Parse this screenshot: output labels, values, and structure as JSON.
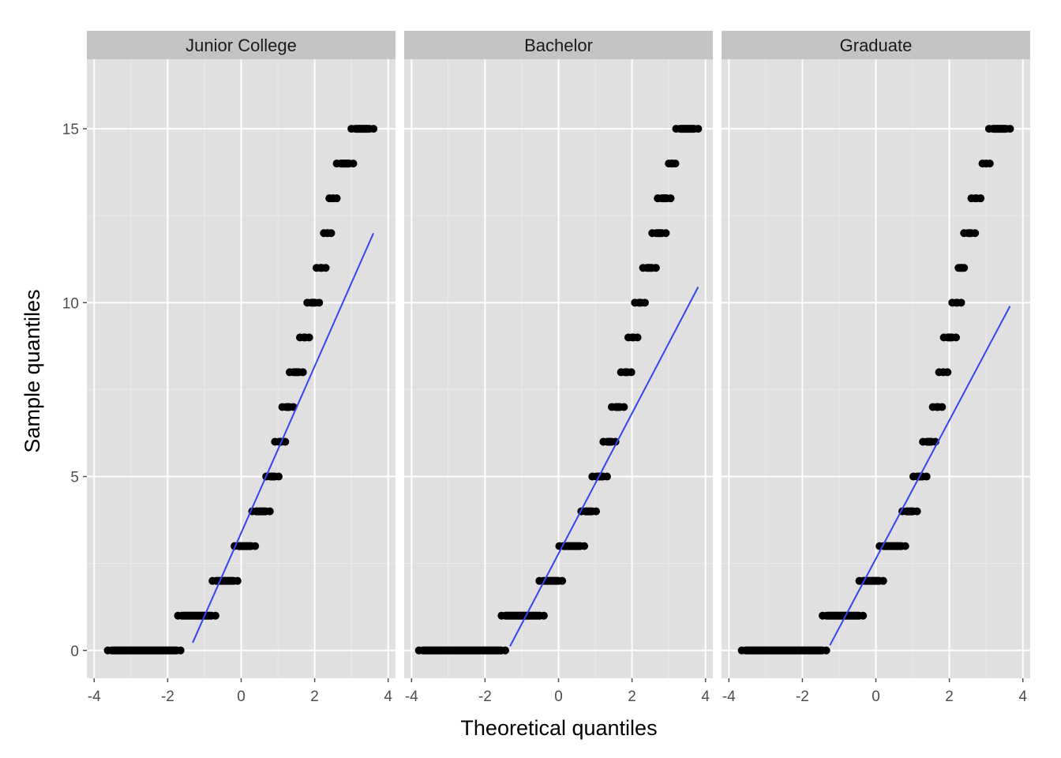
{
  "chart_data": {
    "type": "scatter",
    "subtype": "qq-plot-faceted",
    "title": "",
    "xlabel": "Theoretical quantiles",
    "ylabel": "Sample quantiles",
    "xlim": [
      -4.2,
      4.2
    ],
    "ylim": [
      -0.8,
      17.0
    ],
    "xticks": [
      -4,
      -2,
      0,
      2,
      4
    ],
    "yticks": [
      0,
      5,
      10,
      15
    ],
    "grid": true,
    "legend": "none",
    "colors": {
      "panel_background": "#e0e0e0",
      "strip_background": "#c4c4c4",
      "grid_major": "#ffffff",
      "grid_minor": "#ebebeb",
      "points": "#000000",
      "reference_line": "#3344ee"
    },
    "facets": [
      {
        "label": "Junior College",
        "reference_line": {
          "x": [
            -1.32,
            3.6
          ],
          "y": [
            0.22,
            12.0
          ]
        },
        "segments": [
          {
            "y": 0,
            "x_start": -3.63,
            "x_end": -1.65
          },
          {
            "y": 1,
            "x_start": -1.72,
            "x_end": -0.7
          },
          {
            "y": 2,
            "x_start": -0.78,
            "x_end": -0.1
          },
          {
            "y": 3,
            "x_start": -0.18,
            "x_end": 0.38
          },
          {
            "y": 4,
            "x_start": 0.3,
            "x_end": 0.78
          },
          {
            "y": 5,
            "x_start": 0.68,
            "x_end": 1.02
          },
          {
            "y": 6,
            "x_start": 0.92,
            "x_end": 1.2
          },
          {
            "y": 7,
            "x_start": 1.12,
            "x_end": 1.42
          },
          {
            "y": 8,
            "x_start": 1.32,
            "x_end": 1.68
          },
          {
            "y": 9,
            "x_start": 1.6,
            "x_end": 1.85
          },
          {
            "y": 10,
            "x_start": 1.8,
            "x_end": 2.12
          },
          {
            "y": 11,
            "x_start": 2.05,
            "x_end": 2.3
          },
          {
            "y": 12,
            "x_start": 2.25,
            "x_end": 2.45
          },
          {
            "y": 13,
            "x_start": 2.4,
            "x_end": 2.6
          },
          {
            "y": 14,
            "x_start": 2.6,
            "x_end": 3.05
          },
          {
            "y": 15,
            "x_start": 3.0,
            "x_end": 3.6
          }
        ]
      },
      {
        "label": "Bachelor",
        "reference_line": {
          "x": [
            -1.32,
            3.8
          ],
          "y": [
            0.12,
            10.45
          ]
        },
        "segments": [
          {
            "y": 0,
            "x_start": -3.8,
            "x_end": -1.45
          },
          {
            "y": 1,
            "x_start": -1.55,
            "x_end": -0.4
          },
          {
            "y": 2,
            "x_start": -0.52,
            "x_end": 0.1
          },
          {
            "y": 3,
            "x_start": 0.02,
            "x_end": 0.7
          },
          {
            "y": 4,
            "x_start": 0.62,
            "x_end": 1.02
          },
          {
            "y": 5,
            "x_start": 0.92,
            "x_end": 1.32
          },
          {
            "y": 6,
            "x_start": 1.22,
            "x_end": 1.55
          },
          {
            "y": 7,
            "x_start": 1.45,
            "x_end": 1.78
          },
          {
            "y": 8,
            "x_start": 1.7,
            "x_end": 1.98
          },
          {
            "y": 9,
            "x_start": 1.9,
            "x_end": 2.15
          },
          {
            "y": 10,
            "x_start": 2.08,
            "x_end": 2.35
          },
          {
            "y": 11,
            "x_start": 2.3,
            "x_end": 2.65
          },
          {
            "y": 12,
            "x_start": 2.55,
            "x_end": 2.92
          },
          {
            "y": 13,
            "x_start": 2.7,
            "x_end": 3.05
          },
          {
            "y": 14,
            "x_start": 3.0,
            "x_end": 3.18
          },
          {
            "y": 15,
            "x_start": 3.2,
            "x_end": 3.8
          }
        ]
      },
      {
        "label": "Graduate",
        "reference_line": {
          "x": [
            -1.25,
            3.65
          ],
          "y": [
            0.15,
            9.9
          ]
        },
        "segments": [
          {
            "y": 0,
            "x_start": -3.65,
            "x_end": -1.35
          },
          {
            "y": 1,
            "x_start": -1.45,
            "x_end": -0.35
          },
          {
            "y": 2,
            "x_start": -0.45,
            "x_end": 0.2
          },
          {
            "y": 3,
            "x_start": 0.1,
            "x_end": 0.8
          },
          {
            "y": 4,
            "x_start": 0.72,
            "x_end": 1.12
          },
          {
            "y": 5,
            "x_start": 1.02,
            "x_end": 1.38
          },
          {
            "y": 6,
            "x_start": 1.28,
            "x_end": 1.62
          },
          {
            "y": 7,
            "x_start": 1.55,
            "x_end": 1.8
          },
          {
            "y": 8,
            "x_start": 1.72,
            "x_end": 1.95
          },
          {
            "y": 9,
            "x_start": 1.85,
            "x_end": 2.18
          },
          {
            "y": 10,
            "x_start": 2.08,
            "x_end": 2.32
          },
          {
            "y": 11,
            "x_start": 2.25,
            "x_end": 2.4
          },
          {
            "y": 12,
            "x_start": 2.4,
            "x_end": 2.7
          },
          {
            "y": 13,
            "x_start": 2.6,
            "x_end": 2.85
          },
          {
            "y": 14,
            "x_start": 2.9,
            "x_end": 3.1
          },
          {
            "y": 15,
            "x_start": 3.08,
            "x_end": 3.65
          }
        ]
      }
    ]
  }
}
